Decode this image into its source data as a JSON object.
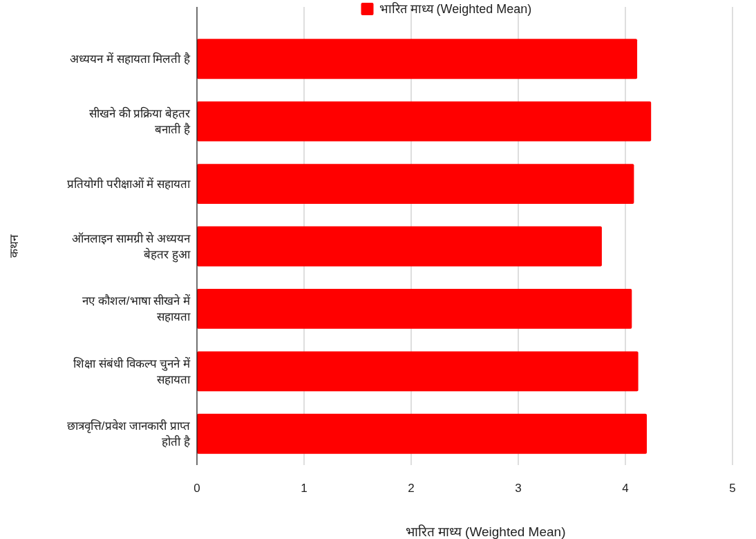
{
  "chart_data": {
    "type": "bar",
    "orientation": "horizontal",
    "xlabel": "भारित माध्य (Weighted Mean)",
    "ylabel": "कथन",
    "categories": [
      "अध्ययन में सहायता मिलती है",
      "सीखने की प्रक्रिया बेहतर बनाती है",
      "प्रतियोगी परीक्षाओं में सहायता",
      "ऑनलाइन सामग्री से अध्ययन बेहतर हुआ",
      "नए कौशल/भाषा सीखने में सहायता",
      "शिक्षा संबंधी विकल्प चुनने में सहायता",
      "छात्रवृत्ति/प्रवेश जानकारी प्राप्त होती है"
    ],
    "series": [
      {
        "name": "भारित माध्य (Weighted Mean)",
        "color": "#ff0000",
        "values": [
          4.11,
          4.24,
          4.08,
          3.78,
          4.06,
          4.12,
          4.2
        ]
      }
    ],
    "xlim": [
      0,
      5
    ],
    "xticks": [
      0,
      1,
      2,
      3,
      4,
      5
    ],
    "grid": "x",
    "legend": "top"
  }
}
